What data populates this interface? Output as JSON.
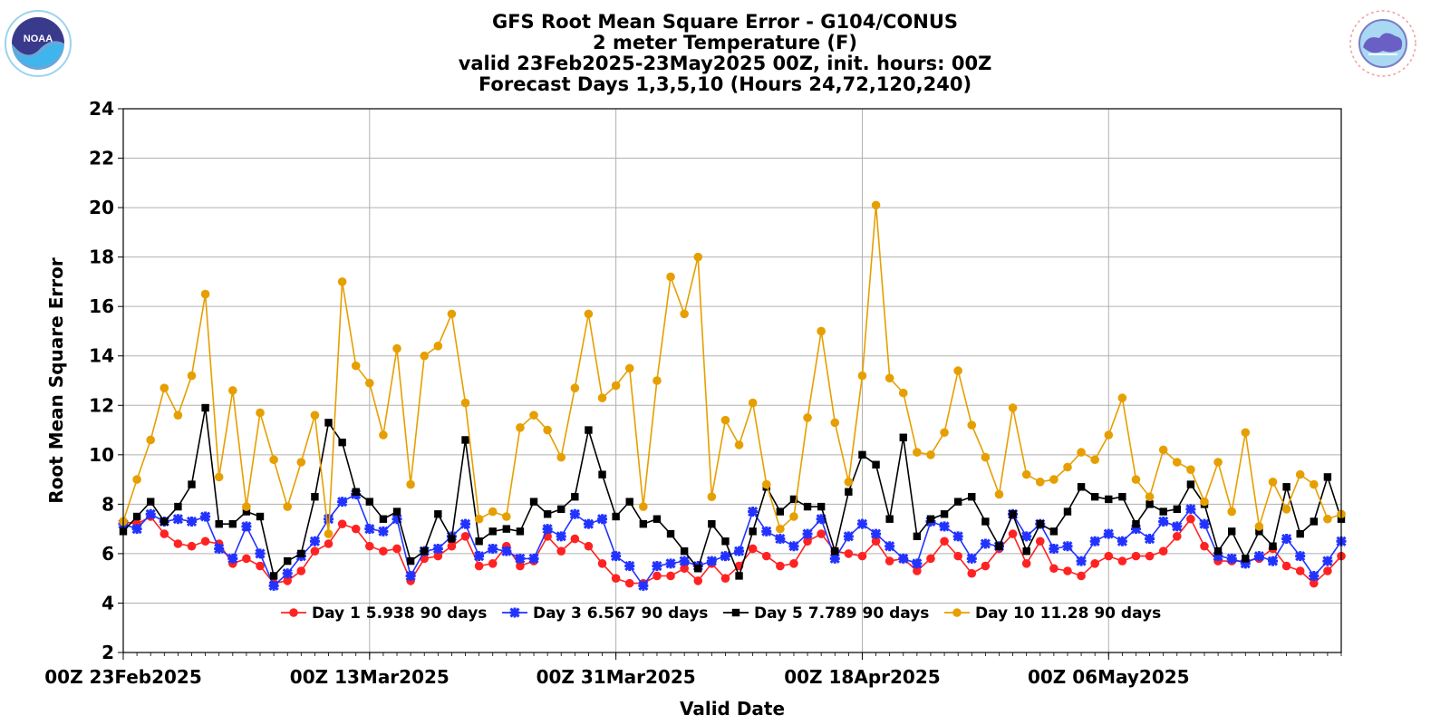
{
  "logos": {
    "left": {
      "text": "NOAA",
      "ring_text": "NATIONAL OCEANIC AND ATMOSPHERIC ADMINISTRATION",
      "icon": "noaa-logo-icon"
    },
    "right": {
      "ring_text": "NATIONAL WEATHER SERVICE",
      "icon": "nws-logo-icon"
    }
  },
  "chart_data": {
    "type": "line",
    "title": [
      "GFS Root Mean Square Error - G104/CONUS",
      "2 meter Temperature (F)",
      "valid 23Feb2025-23May2025 00Z, init. hours: 00Z",
      "Forecast Days 1,3,5,10 (Hours 24,72,120,240)"
    ],
    "xlabel": "Valid Date",
    "ylabel": "Root Mean Square Error",
    "ylim": [
      2,
      24
    ],
    "yticks": [
      2,
      4,
      6,
      8,
      10,
      12,
      14,
      16,
      18,
      20,
      22,
      24
    ],
    "x_start": "2025-02-23",
    "x_end": "2025-05-23",
    "xticks": [
      {
        "date": "2025-02-23",
        "label": "00Z 23Feb2025"
      },
      {
        "date": "2025-03-13",
        "label": "00Z 13Mar2025"
      },
      {
        "date": "2025-03-31",
        "label": "00Z 31Mar2025"
      },
      {
        "date": "2025-04-18",
        "label": "00Z 18Apr2025"
      },
      {
        "date": "2025-05-06",
        "label": "00Z 06May2025"
      }
    ],
    "grid": true,
    "legend_position": "bottom-center",
    "series": [
      {
        "name": "Day 1",
        "legend": "Day 1 5.938 90 days",
        "color": "#ff2222",
        "marker": "circle",
        "values": [
          7.3,
          7.2,
          7.5,
          6.8,
          6.4,
          6.3,
          6.5,
          6.4,
          5.6,
          5.8,
          5.5,
          4.8,
          4.9,
          5.3,
          6.1,
          6.4,
          7.2,
          7.0,
          6.3,
          6.1,
          6.2,
          4.9,
          5.8,
          5.9,
          6.3,
          6.7,
          5.5,
          5.6,
          6.3,
          5.5,
          5.7,
          6.7,
          6.1,
          6.6,
          6.3,
          5.6,
          5.0,
          4.8,
          4.8,
          5.1,
          5.1,
          5.4,
          4.9,
          5.6,
          5.0,
          5.5,
          6.2,
          5.9,
          5.5,
          5.6,
          6.5,
          6.8,
          6.1,
          6.0,
          5.9,
          6.5,
          5.7,
          5.8,
          5.3,
          5.8,
          6.5,
          5.9,
          5.2,
          5.5,
          6.2,
          6.8,
          5.6,
          6.5,
          5.4,
          5.3,
          5.1,
          5.6,
          5.9,
          5.7,
          5.9,
          5.9,
          6.1,
          6.7,
          7.4,
          6.3,
          5.7,
          5.7,
          5.7,
          5.8,
          6.2,
          5.5,
          5.3,
          4.8,
          5.3,
          5.9
        ]
      },
      {
        "name": "Day 3",
        "legend": "Day 3 6.567 90 days",
        "color": "#2233ff",
        "marker": "x",
        "values": [
          7.2,
          7.0,
          7.6,
          7.3,
          7.4,
          7.3,
          7.5,
          6.2,
          5.8,
          7.1,
          6.0,
          4.7,
          5.2,
          5.9,
          6.5,
          7.4,
          8.1,
          8.4,
          7.0,
          6.9,
          7.4,
          5.1,
          6.1,
          6.2,
          6.7,
          7.2,
          5.9,
          6.2,
          6.1,
          5.8,
          5.8,
          7.0,
          6.7,
          7.6,
          7.2,
          7.4,
          5.9,
          5.5,
          4.7,
          5.5,
          5.6,
          5.7,
          5.5,
          5.7,
          5.9,
          6.1,
          7.7,
          6.9,
          6.6,
          6.3,
          6.8,
          7.4,
          5.8,
          6.7,
          7.2,
          6.8,
          6.3,
          5.8,
          5.6,
          7.3,
          7.1,
          6.7,
          5.8,
          6.4,
          6.3,
          7.6,
          6.7,
          7.2,
          6.2,
          6.3,
          5.7,
          6.5,
          6.8,
          6.5,
          7.0,
          6.6,
          7.3,
          7.1,
          7.8,
          7.2,
          5.9,
          5.8,
          5.6,
          5.9,
          5.7,
          6.6,
          5.9,
          5.1,
          5.7,
          6.5
        ]
      },
      {
        "name": "Day 5",
        "legend": "Day 5 7.789 90 days",
        "color": "#000000",
        "marker": "square",
        "values": [
          6.9,
          7.5,
          8.1,
          7.3,
          7.9,
          8.8,
          11.9,
          7.2,
          7.2,
          7.7,
          7.5,
          5.1,
          5.7,
          6.0,
          8.3,
          11.3,
          10.5,
          8.5,
          8.1,
          7.4,
          7.7,
          5.7,
          6.1,
          7.6,
          6.6,
          10.6,
          6.5,
          6.9,
          7.0,
          6.9,
          8.1,
          7.6,
          7.8,
          8.3,
          11.0,
          9.2,
          7.5,
          8.1,
          7.2,
          7.4,
          6.8,
          6.1,
          5.4,
          7.2,
          6.5,
          5.1,
          6.9,
          8.7,
          7.7,
          8.2,
          7.9,
          7.9,
          6.1,
          8.5,
          10.0,
          9.6,
          7.4,
          10.7,
          6.7,
          7.4,
          7.6,
          8.1,
          8.3,
          7.3,
          6.3,
          7.6,
          6.1,
          7.2,
          6.9,
          7.7,
          8.7,
          8.3,
          8.2,
          8.3,
          7.2,
          8.0,
          7.7,
          7.8,
          8.8,
          8.0,
          6.1,
          6.9,
          5.8,
          6.9,
          6.3,
          8.7,
          6.8,
          7.3,
          9.1,
          7.4
        ]
      },
      {
        "name": "Day 10",
        "legend": "Day 10 11.28 90 days",
        "color": "#e69f00",
        "marker": "circle",
        "values": [
          7.3,
          9.0,
          10.6,
          12.7,
          11.6,
          13.2,
          16.5,
          9.1,
          12.6,
          7.9,
          11.7,
          9.8,
          7.9,
          9.7,
          11.6,
          6.8,
          17.0,
          13.6,
          12.9,
          10.8,
          14.3,
          8.8,
          14.0,
          14.4,
          15.7,
          12.1,
          7.4,
          7.7,
          7.5,
          11.1,
          11.6,
          11.0,
          9.9,
          12.7,
          15.7,
          12.3,
          12.8,
          13.5,
          7.9,
          13.0,
          17.2,
          15.7,
          18.0,
          8.3,
          11.4,
          10.4,
          12.1,
          8.8,
          7.0,
          7.5,
          11.5,
          15.0,
          11.3,
          8.9,
          13.2,
          20.1,
          13.1,
          12.5,
          10.1,
          10.0,
          10.9,
          13.4,
          11.2,
          9.9,
          8.4,
          11.9,
          9.2,
          8.9,
          9.0,
          9.5,
          10.1,
          9.8,
          10.8,
          12.3,
          9.0,
          8.3,
          10.2,
          9.7,
          9.4,
          8.1,
          9.7,
          7.7,
          10.9,
          7.1,
          8.9,
          7.8,
          9.2,
          8.8,
          7.4,
          7.6
        ]
      }
    ]
  }
}
